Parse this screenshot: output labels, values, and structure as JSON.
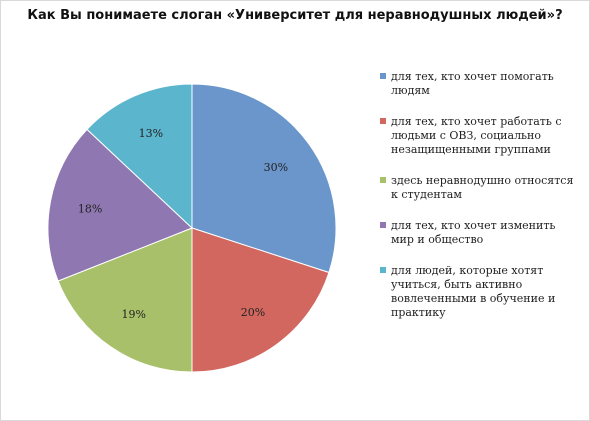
{
  "chart_data": {
    "type": "pie",
    "title": "Как Вы понимаете слоган  «Университет для неравнодушных людей»?",
    "legend_position": "right",
    "slices": [
      {
        "label": "для тех, кто хочет помогать людям",
        "value": 30,
        "display": "30%",
        "color": "#6a96cb"
      },
      {
        "label": "для тех, кто хочет работать с людьми с ОВЗ, социально незащищенными группами",
        "value": 20,
        "display": "20%",
        "color": "#d2675f"
      },
      {
        "label": "здесь неравнодушно относятся к студентам",
        "value": 19,
        "display": "19%",
        "color": "#a8c06a"
      },
      {
        "label": "для тех, кто хочет изменить мир и общество",
        "value": 18,
        "display": "18%",
        "color": "#8f77b2"
      },
      {
        "label": "для людей, которые хотят учиться, быть активно вовлеченными в обучение и практику",
        "value": 13,
        "display": "13%",
        "color": "#5bb5cc"
      }
    ]
  }
}
